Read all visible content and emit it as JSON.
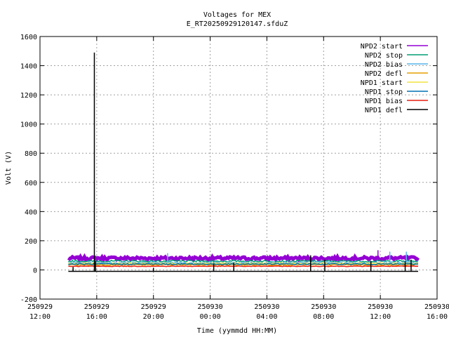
{
  "chart_data": {
    "type": "line",
    "title": "Voltages for MEX",
    "subtitle": "E_RT20250929120147.sfduZ",
    "xlabel": "Time (yymmdd HH:MM)",
    "ylabel": "Volt (V)",
    "xlim": [
      "2025-09-29 12:00",
      "2025-09-30 16:00"
    ],
    "ylim": [
      -200,
      1600
    ],
    "grid": true,
    "legend_position": "top-right",
    "x_ticks": [
      {
        "date": "250929",
        "time": "12:00"
      },
      {
        "date": "250929",
        "time": "16:00"
      },
      {
        "date": "250929",
        "time": "20:00"
      },
      {
        "date": "250930",
        "time": "00:00"
      },
      {
        "date": "250930",
        "time": "04:00"
      },
      {
        "date": "250930",
        "time": "08:00"
      },
      {
        "date": "250930",
        "time": "12:00"
      },
      {
        "date": "250930",
        "time": "16:00"
      }
    ],
    "y_ticks": [
      "-200",
      "0",
      "200",
      "400",
      "600",
      "800",
      "1000",
      "1200",
      "1400",
      "1600"
    ],
    "series": [
      {
        "name": "NPD2 start",
        "color": "#9400d3",
        "x": [
          "2025-09-29 14:00",
          "2025-09-30 14:40"
        ],
        "y": [
          80,
          80
        ],
        "noise": 10
      },
      {
        "name": "NPD2 stop",
        "color": "#009e73",
        "x": [
          "2025-09-29 14:00",
          "2025-09-30 14:40"
        ],
        "y": [
          60,
          60
        ],
        "noise": 6
      },
      {
        "name": "NPD2 bias",
        "color": "#56b4e9",
        "x": [
          "2025-09-29 14:00",
          "2025-09-30 14:40"
        ],
        "y": [
          50,
          50
        ],
        "noise": 6
      },
      {
        "name": "NPD2 defl",
        "color": "#e69f00",
        "x": [
          "2025-09-29 14:00",
          "2025-09-30 14:40"
        ],
        "y": [
          35,
          35
        ],
        "noise": 4
      },
      {
        "name": "NPD1 start",
        "color": "#f0e442",
        "x": [
          "2025-09-29 14:00",
          "2025-09-30 14:40"
        ],
        "y": [
          45,
          45
        ],
        "noise": 4
      },
      {
        "name": "NPD1 stop",
        "color": "#0072b2",
        "x": [
          "2025-09-29 14:00",
          "2025-09-30 14:40"
        ],
        "y": [
          40,
          40
        ],
        "noise": 4
      },
      {
        "name": "NPD1 bias",
        "color": "#e51e10",
        "x": [
          "2025-09-29 14:00",
          "2025-09-30 14:40"
        ],
        "y": [
          25,
          25
        ],
        "noise": 2
      },
      {
        "name": "NPD1 defl",
        "color": "#000000",
        "x": [
          "2025-09-29 14:00",
          "2025-09-30 14:40"
        ],
        "y": [
          -10,
          -10
        ],
        "noise": 0
      }
    ],
    "spikes": [
      {
        "series": "NPD1 defl",
        "x": "2025-09-29 14:20",
        "y": 20
      },
      {
        "series": "NPD1 defl",
        "x": "2025-09-29 15:50",
        "y": 1490
      },
      {
        "series": "NPD1 defl",
        "x": "2025-09-29 15:55",
        "y": 60
      },
      {
        "series": "NPD1 defl",
        "x": "2025-09-29 20:00",
        "y": 15
      },
      {
        "series": "NPD1 defl",
        "x": "2025-09-30 00:15",
        "y": 40
      },
      {
        "series": "NPD1 defl",
        "x": "2025-09-30 01:40",
        "y": 50
      },
      {
        "series": "NPD1 defl",
        "x": "2025-09-30 07:05",
        "y": 100
      },
      {
        "series": "NPD1 defl",
        "x": "2025-09-30 08:05",
        "y": 70
      },
      {
        "series": "NPD1 defl",
        "x": "2025-09-30 11:20",
        "y": 60
      },
      {
        "series": "NPD1 defl",
        "x": "2025-09-30 13:45",
        "y": 60
      },
      {
        "series": "NPD1 defl",
        "x": "2025-09-30 14:10",
        "y": 70
      },
      {
        "series": "NPD2 start",
        "x": "2025-09-30 11:50",
        "y": 135
      },
      {
        "series": "NPD2 bias",
        "x": "2025-09-30 12:40",
        "y": 125
      },
      {
        "series": "NPD2 bias",
        "x": "2025-09-30 13:50",
        "y": 125
      },
      {
        "series": "NPD2 bias",
        "x": "2025-09-29 21:00",
        "y": 115
      }
    ]
  }
}
